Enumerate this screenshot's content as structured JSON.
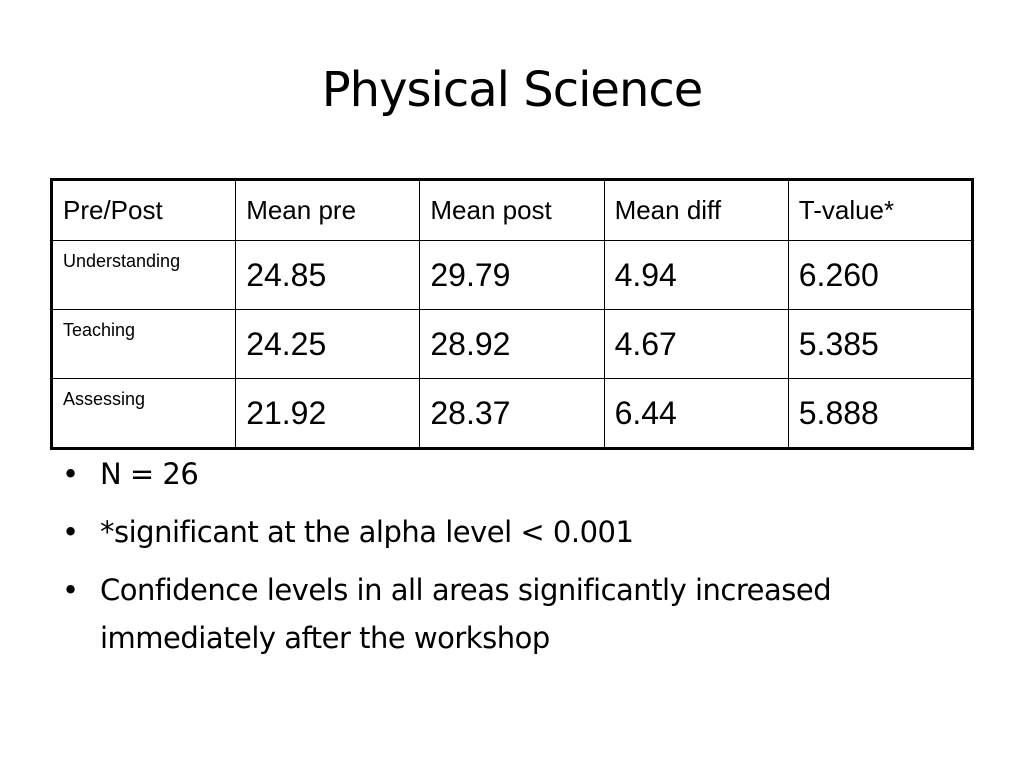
{
  "title": "Physical Science",
  "table": {
    "header": [
      "Pre/Post",
      "Mean pre",
      "Mean post",
      "Mean diff",
      "T-value*"
    ],
    "rows": [
      [
        "Understanding",
        "24.85",
        "29.79",
        "4.94",
        "6.260"
      ],
      [
        "Teaching",
        "24.25",
        "28.92",
        "4.67",
        "5.385"
      ],
      [
        "Assessing",
        "21.92",
        "28.37",
        "6.44",
        "5.888"
      ]
    ]
  },
  "bullets": [
    "N = 26",
    "*significant at the alpha level < 0.001",
    "Confidence levels in all areas significantly increased immediately after the workshop"
  ]
}
